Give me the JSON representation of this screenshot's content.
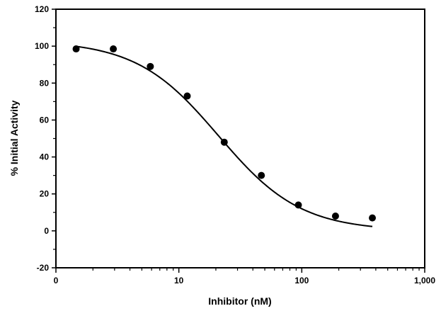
{
  "chart_data": {
    "type": "scatter",
    "xlabel": "Inhibitor (nM)",
    "ylabel": "% Initial Activity",
    "x_scale": "log",
    "xlim": [
      1,
      1000
    ],
    "ylim": [
      -20,
      120
    ],
    "x_ticks": [
      {
        "value": 1,
        "label": "0"
      },
      {
        "value": 10,
        "label": "10"
      },
      {
        "value": 100,
        "label": "100"
      },
      {
        "value": 1000,
        "label": "1,000"
      }
    ],
    "y_ticks": [
      {
        "value": -20,
        "label": "-20"
      },
      {
        "value": 0,
        "label": "0"
      },
      {
        "value": 20,
        "label": "20"
      },
      {
        "value": 40,
        "label": "40"
      },
      {
        "value": 60,
        "label": "60"
      },
      {
        "value": 80,
        "label": "80"
      },
      {
        "value": 100,
        "label": "100"
      },
      {
        "value": 120,
        "label": "120"
      }
    ],
    "points": [
      {
        "x": 1.46,
        "y": 98.5
      },
      {
        "x": 2.93,
        "y": 98.5
      },
      {
        "x": 5.86,
        "y": 89.0
      },
      {
        "x": 11.7,
        "y": 73.0
      },
      {
        "x": 23.4,
        "y": 48.0
      },
      {
        "x": 46.9,
        "y": 30.0
      },
      {
        "x": 93.8,
        "y": 14.0
      },
      {
        "x": 188,
        "y": 8.0
      },
      {
        "x": 375,
        "y": 7.0
      }
    ],
    "fit_curve": {
      "model": "four-parameter logistic",
      "top": 103,
      "bottom": 0,
      "ic50": 21,
      "hill": 1.3,
      "x_range": [
        1.46,
        375
      ]
    },
    "grid": false,
    "legend": "none"
  }
}
